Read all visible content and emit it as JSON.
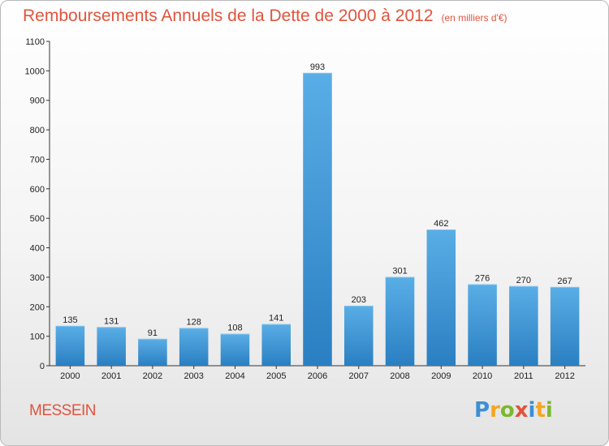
{
  "title": "Remboursements Annuels de la Dette de 2000 à 2012",
  "unit": "(en milliers d'€)",
  "commune": "MESSEIN",
  "logo": {
    "letters": [
      "P",
      "r",
      "o",
      "x",
      "i",
      "t",
      "i"
    ],
    "colors": [
      "#3c8fd6",
      "#f5a623",
      "#7cb82f",
      "#e0543c",
      "#3c8fd6",
      "#f5a623",
      "#7cb82f"
    ]
  },
  "chart_data": {
    "type": "bar",
    "categories": [
      "2000",
      "2001",
      "2002",
      "2003",
      "2004",
      "2005",
      "2006",
      "2007",
      "2008",
      "2009",
      "2010",
      "2011",
      "2012"
    ],
    "values": [
      135,
      131,
      91,
      128,
      108,
      141,
      993,
      203,
      301,
      462,
      276,
      270,
      267
    ],
    "y_ticks": [
      0,
      100,
      200,
      300,
      400,
      500,
      600,
      700,
      800,
      900,
      1000,
      1100
    ],
    "ylim": [
      0,
      1100
    ],
    "grid": false,
    "bar_color": "#3d96d8"
  }
}
